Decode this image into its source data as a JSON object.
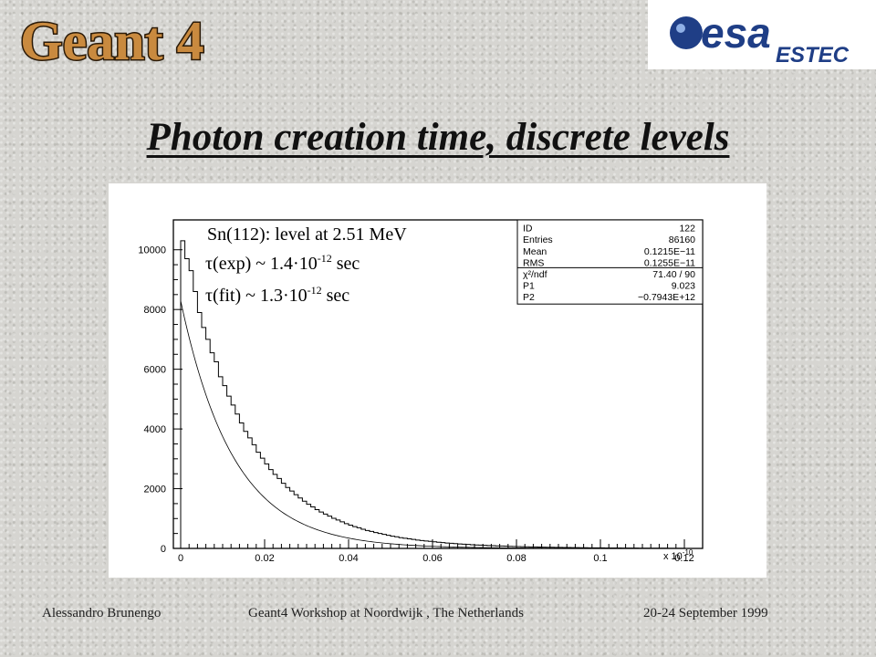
{
  "logos": {
    "geant": "Geant 4",
    "esa": "esa",
    "estec": "ESTEC"
  },
  "slide_title": "Photon creation time, discrete levels",
  "footer": {
    "author": "Alessandro Brunengo",
    "event": "Geant4 Workshop at Noordwijk , The Netherlands",
    "date": "20-24 September 1999"
  },
  "colors": {
    "geant_logo": "#c98a3f",
    "esa_blue": "#1f3e86",
    "plot_line": "#000000"
  },
  "chart_data": {
    "type": "histogram",
    "x_scale_label": "x 10",
    "x_scale_exponent": "-10",
    "xlim": [
      0,
      0.12
    ],
    "ylim": [
      0,
      11000
    ],
    "x_ticks": [
      0,
      0.02,
      0.04,
      0.06,
      0.08,
      0.1,
      0.12
    ],
    "x_tick_labels": [
      "0",
      "0.02",
      "0.04",
      "0.06",
      "0.08",
      "0.1",
      "0.12"
    ],
    "y_ticks": [
      0,
      2000,
      4000,
      6000,
      8000,
      10000
    ],
    "y_tick_labels": [
      "0",
      "2000",
      "4000",
      "6000",
      "8000",
      "10000"
    ],
    "annotation": {
      "line1": "Sn(112): level at 2.51 MeV",
      "line2_prefix": "τ(exp) ~ 1.4·10",
      "line2_exp": "-12",
      "line2_suffix": " sec",
      "line3_prefix": "τ(fit) ~ 1.3·10",
      "line3_exp": "-12",
      "line3_suffix": " sec"
    },
    "stats_box": [
      {
        "label": "ID",
        "value": "122"
      },
      {
        "label": "Entries",
        "value": "86160"
      },
      {
        "label": "Mean",
        "value": "0.1215E−11"
      },
      {
        "label": "RMS",
        "value": "0.1255E−11"
      },
      {
        "label": "χ²/ndf",
        "value": "71.40 / 90"
      },
      {
        "label": "P1",
        "value": "9.023"
      },
      {
        "label": "P2",
        "value": "−0.7943E+12"
      }
    ],
    "fit": {
      "p1": 9.023,
      "p2": -0.7943
    },
    "histogram": {
      "bin_width": 0.001,
      "values": [
        10300,
        9700,
        9300,
        8600,
        7900,
        7400,
        7000,
        6550,
        6250,
        5750,
        5450,
        5100,
        4800,
        4500,
        4200,
        3920,
        3700,
        3470,
        3220,
        3020,
        2830,
        2640,
        2480,
        2340,
        2180,
        2040,
        1920,
        1800,
        1690,
        1580,
        1480,
        1390,
        1300,
        1220,
        1150,
        1080,
        1010,
        950,
        890,
        830,
        780,
        730,
        690,
        640,
        600,
        570,
        530,
        500,
        470,
        440,
        410,
        390,
        360,
        340,
        320,
        300,
        280,
        265,
        250,
        235,
        220,
        205,
        195,
        180,
        170,
        160,
        150,
        140,
        132,
        124,
        116,
        110,
        102,
        96,
        90,
        85,
        80,
        75,
        70,
        66,
        62,
        58,
        55,
        51,
        48,
        45,
        42,
        40,
        37,
        35,
        33,
        31,
        29,
        27,
        26,
        24,
        23,
        21,
        20,
        19,
        18,
        17,
        16,
        15,
        14,
        13,
        12,
        11,
        10,
        9,
        8,
        8,
        7,
        7,
        6,
        6,
        5,
        5,
        5,
        4
      ]
    }
  }
}
